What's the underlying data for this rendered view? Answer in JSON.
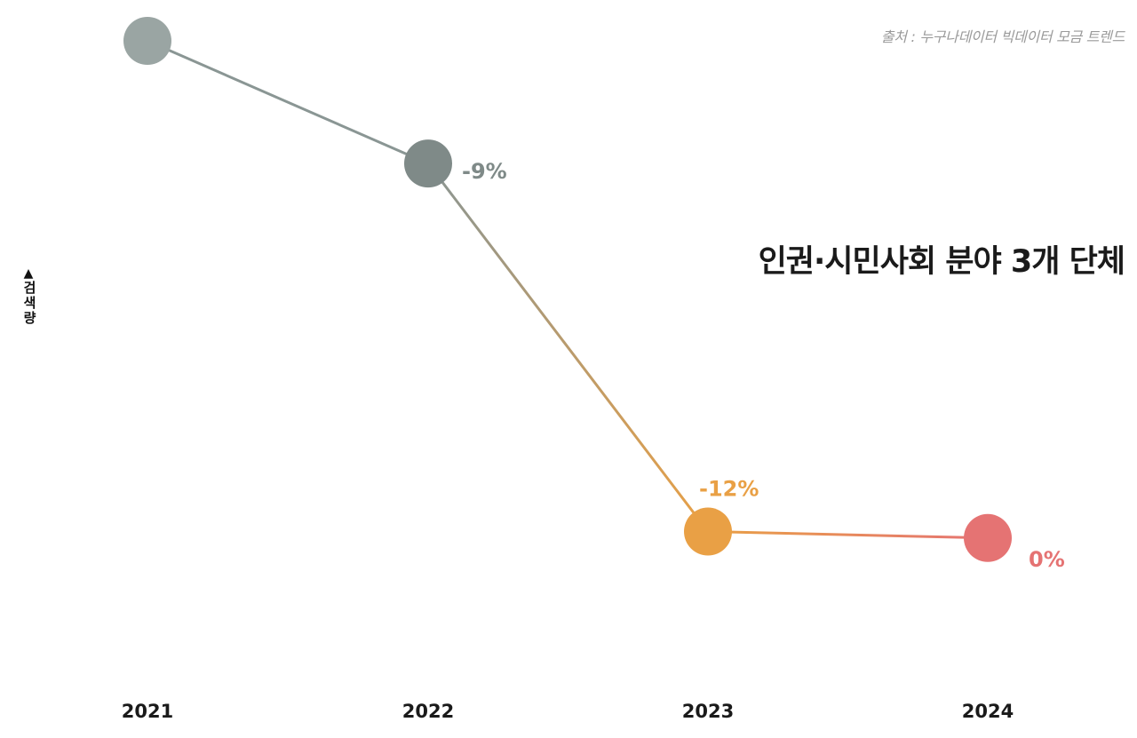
{
  "source": "출처 : 누구나데이터 빅데이터 모금 트렌드",
  "chart_data": {
    "type": "line",
    "title": "인권·시민사회 분야 3개 단체",
    "ylabel": "검색량",
    "x": [
      "2021",
      "2022",
      "2023",
      "2024"
    ],
    "values": [
      100,
      81,
      24,
      23
    ],
    "ylim": [
      0,
      100
    ],
    "data_labels": [
      "",
      "-9%",
      "-12%",
      "0%"
    ],
    "point_colors": [
      "#9aa5a3",
      "#7f8a88",
      "#e9a045",
      "#e57373"
    ],
    "line_colors": [
      "#8a9694",
      "#8a9694",
      "#e9a045",
      "#e57373"
    ],
    "grid": false,
    "legend": "none"
  }
}
